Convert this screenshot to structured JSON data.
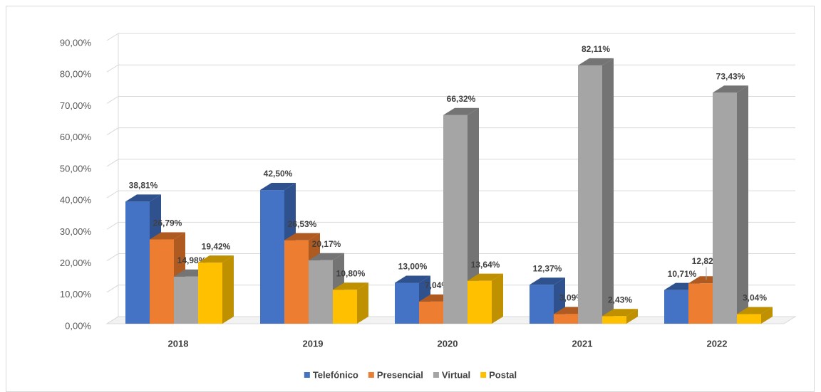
{
  "chart_data": {
    "type": "bar3d",
    "categories": [
      "2018",
      "2019",
      "2020",
      "2021",
      "2022"
    ],
    "series": [
      {
        "name": "Telefónico",
        "color": "#4472c4",
        "side": "#2f528f",
        "values": [
          38.81,
          42.5,
          13.0,
          12.37,
          10.71
        ],
        "value_labels": [
          "38,81%",
          "42,50%",
          "13,00%",
          "12,37%",
          "10,71%"
        ]
      },
      {
        "name": "Presencial",
        "color": "#ed7d31",
        "side": "#ae5a21",
        "values": [
          26.79,
          26.53,
          7.04,
          3.09,
          12.82
        ],
        "value_labels": [
          "26,79%",
          "26,53%",
          "7,04%",
          "3,09%",
          "12,82%"
        ]
      },
      {
        "name": "Virtual",
        "color": "#a5a5a5",
        "side": "#747474",
        "values": [
          14.98,
          20.17,
          66.32,
          82.11,
          73.43
        ],
        "value_labels": [
          "14,98%",
          "20,17%",
          "66,32%",
          "82,11%",
          "73,43%"
        ]
      },
      {
        "name": "Postal",
        "color": "#ffc000",
        "side": "#bf9000",
        "values": [
          19.42,
          10.8,
          13.64,
          2.43,
          3.04
        ],
        "value_labels": [
          "19,42%",
          "10,80%",
          "13,64%",
          "2,43%",
          "3,04%"
        ]
      }
    ],
    "ylim": [
      0,
      90
    ],
    "yticks": [
      {
        "value": 0,
        "label": "0,00%"
      },
      {
        "value": 10,
        "label": "10,00%"
      },
      {
        "value": 20,
        "label": "20,00%"
      },
      {
        "value": 30,
        "label": "30,00%"
      },
      {
        "value": 40,
        "label": "40,00%"
      },
      {
        "value": 50,
        "label": "50,00%"
      },
      {
        "value": 60,
        "label": "60,00%"
      },
      {
        "value": 70,
        "label": "70,00%"
      },
      {
        "value": 80,
        "label": "80,00%"
      },
      {
        "value": 90,
        "label": "90,00%"
      }
    ],
    "grid": true,
    "legend": "bottom"
  }
}
